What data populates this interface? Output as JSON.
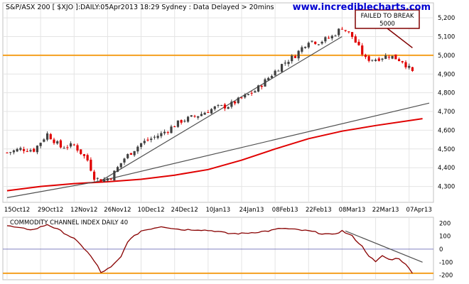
{
  "title": "S&P/ASX 200 [ $XJO ]:DAILY:05Apr2013 18:29 Sydney : Data Delayed > 20mins",
  "site": "www.incrediblecharts.com",
  "annotation": {
    "line1": "FAILED TO BREAK",
    "line2": "5000",
    "target_date_index": 121,
    "target_value": 5040
  },
  "colors": {
    "background": "#ffffff",
    "grid": "#e4e4e4",
    "orange": "#f5a020",
    "ma": "#e00000",
    "trend": "#505050",
    "cci": "#880000",
    "zero": "#8080c0",
    "candle_up": "#404040",
    "candle_down": "#e00000",
    "site_text": "#0000d0"
  },
  "chart_data": [
    {
      "type": "candlestick",
      "title": "S&P/ASX 200 [ $XJO ]:DAILY:05Apr2013 18:29 Sydney : Data Delayed > 20mins",
      "x_tick_labels": [
        {
          "i": 0,
          "label": "15Oct12"
        },
        {
          "i": 10,
          "label": "29Oct12"
        },
        {
          "i": 20,
          "label": "12Nov12"
        },
        {
          "i": 30,
          "label": "26Nov12"
        },
        {
          "i": 40,
          "label": "10Dec12"
        },
        {
          "i": 50,
          "label": "24Dec12"
        },
        {
          "i": 60,
          "label": "10Jan13"
        },
        {
          "i": 70,
          "label": "24Jan13"
        },
        {
          "i": 80,
          "label": "08Feb13"
        },
        {
          "i": 90,
          "label": "22Feb13"
        },
        {
          "i": 100,
          "label": "08Mar13"
        },
        {
          "i": 110,
          "label": "22Mar13"
        },
        {
          "i": 120,
          "label": "07Apr13"
        }
      ],
      "y_ticks": [
        4300,
        4400,
        4500,
        4600,
        4700,
        4800,
        4900,
        5000,
        5100,
        5200
      ],
      "y_tick_labels": [
        "4,300",
        "4,400",
        "4,500",
        "4,600",
        "4,700",
        "4,800",
        "4,900",
        "5,000",
        "5,100",
        "5,200"
      ],
      "ylim": [
        4215,
        5280
      ],
      "date_index_range": [
        0,
        126
      ],
      "grid": true,
      "horizontal_line": 5000,
      "anchors": [
        [
          0,
          4480
        ],
        [
          4,
          4500
        ],
        [
          8,
          4495
        ],
        [
          12,
          4580
        ],
        [
          16,
          4510
        ],
        [
          20,
          4520
        ],
        [
          24,
          4440
        ],
        [
          26,
          4350
        ],
        [
          28,
          4330
        ],
        [
          31,
          4350
        ],
        [
          35,
          4450
        ],
        [
          40,
          4530
        ],
        [
          46,
          4580
        ],
        [
          52,
          4650
        ],
        [
          57,
          4680
        ],
        [
          62,
          4720
        ],
        [
          66,
          4730
        ],
        [
          70,
          4770
        ],
        [
          74,
          4810
        ],
        [
          78,
          4880
        ],
        [
          82,
          4950
        ],
        [
          86,
          5000
        ],
        [
          90,
          5080
        ],
        [
          93,
          5070
        ],
        [
          97,
          5100
        ],
        [
          100,
          5150
        ],
        [
          103,
          5100
        ],
        [
          107,
          4980
        ],
        [
          110,
          4980
        ],
        [
          114,
          5000
        ],
        [
          118,
          4970
        ],
        [
          121,
          4910
        ]
      ],
      "series": [
        {
          "name": "moving average",
          "points": [
            [
              0,
              4277
            ],
            [
              10,
              4300
            ],
            [
              20,
              4315
            ],
            [
              30,
              4325
            ],
            [
              40,
              4338
            ],
            [
              50,
              4360
            ],
            [
              60,
              4390
            ],
            [
              70,
              4440
            ],
            [
              80,
              4500
            ],
            [
              90,
              4555
            ],
            [
              100,
              4595
            ],
            [
              110,
              4625
            ],
            [
              124,
              4662
            ]
          ]
        },
        {
          "name": "trendline steep",
          "points": [
            [
              0,
              4240
            ],
            [
              28,
              4330
            ],
            [
              100,
              5100
            ]
          ]
        },
        {
          "name": "trendline shallow",
          "points": [
            [
              28,
              4330
            ],
            [
              126,
              4745
            ]
          ]
        }
      ]
    },
    {
      "type": "line",
      "title": "COMMODITY CHANNEL INDEX DAILY 40",
      "y_ticks": [
        200,
        100,
        0,
        -100,
        -200
      ],
      "y_tick_labels": [
        "200",
        "100",
        "0",
        "-100",
        "-200"
      ],
      "ylim": [
        -235,
        245
      ],
      "date_index_range": [
        0,
        126
      ],
      "zero_line": 0,
      "support_line": -185,
      "anchors": [
        [
          0,
          180
        ],
        [
          4,
          160
        ],
        [
          8,
          150
        ],
        [
          12,
          190
        ],
        [
          16,
          140
        ],
        [
          20,
          80
        ],
        [
          24,
          -20
        ],
        [
          27,
          -130
        ],
        [
          28,
          -180
        ],
        [
          31,
          -140
        ],
        [
          34,
          -60
        ],
        [
          36,
          60
        ],
        [
          40,
          140
        ],
        [
          46,
          175
        ],
        [
          52,
          150
        ],
        [
          57,
          150
        ],
        [
          62,
          140
        ],
        [
          66,
          120
        ],
        [
          70,
          120
        ],
        [
          74,
          130
        ],
        [
          78,
          140
        ],
        [
          82,
          160
        ],
        [
          86,
          150
        ],
        [
          90,
          140
        ],
        [
          94,
          120
        ],
        [
          97,
          110
        ],
        [
          100,
          140
        ],
        [
          103,
          100
        ],
        [
          106,
          20
        ],
        [
          108,
          -50
        ],
        [
          110,
          -100
        ],
        [
          112,
          -50
        ],
        [
          114,
          -80
        ],
        [
          117,
          -70
        ],
        [
          119,
          -120
        ],
        [
          121,
          -180
        ]
      ],
      "series": [
        {
          "name": "trendline",
          "points": [
            [
              101,
              140
            ],
            [
              124,
              -100
            ]
          ]
        }
      ]
    }
  ]
}
